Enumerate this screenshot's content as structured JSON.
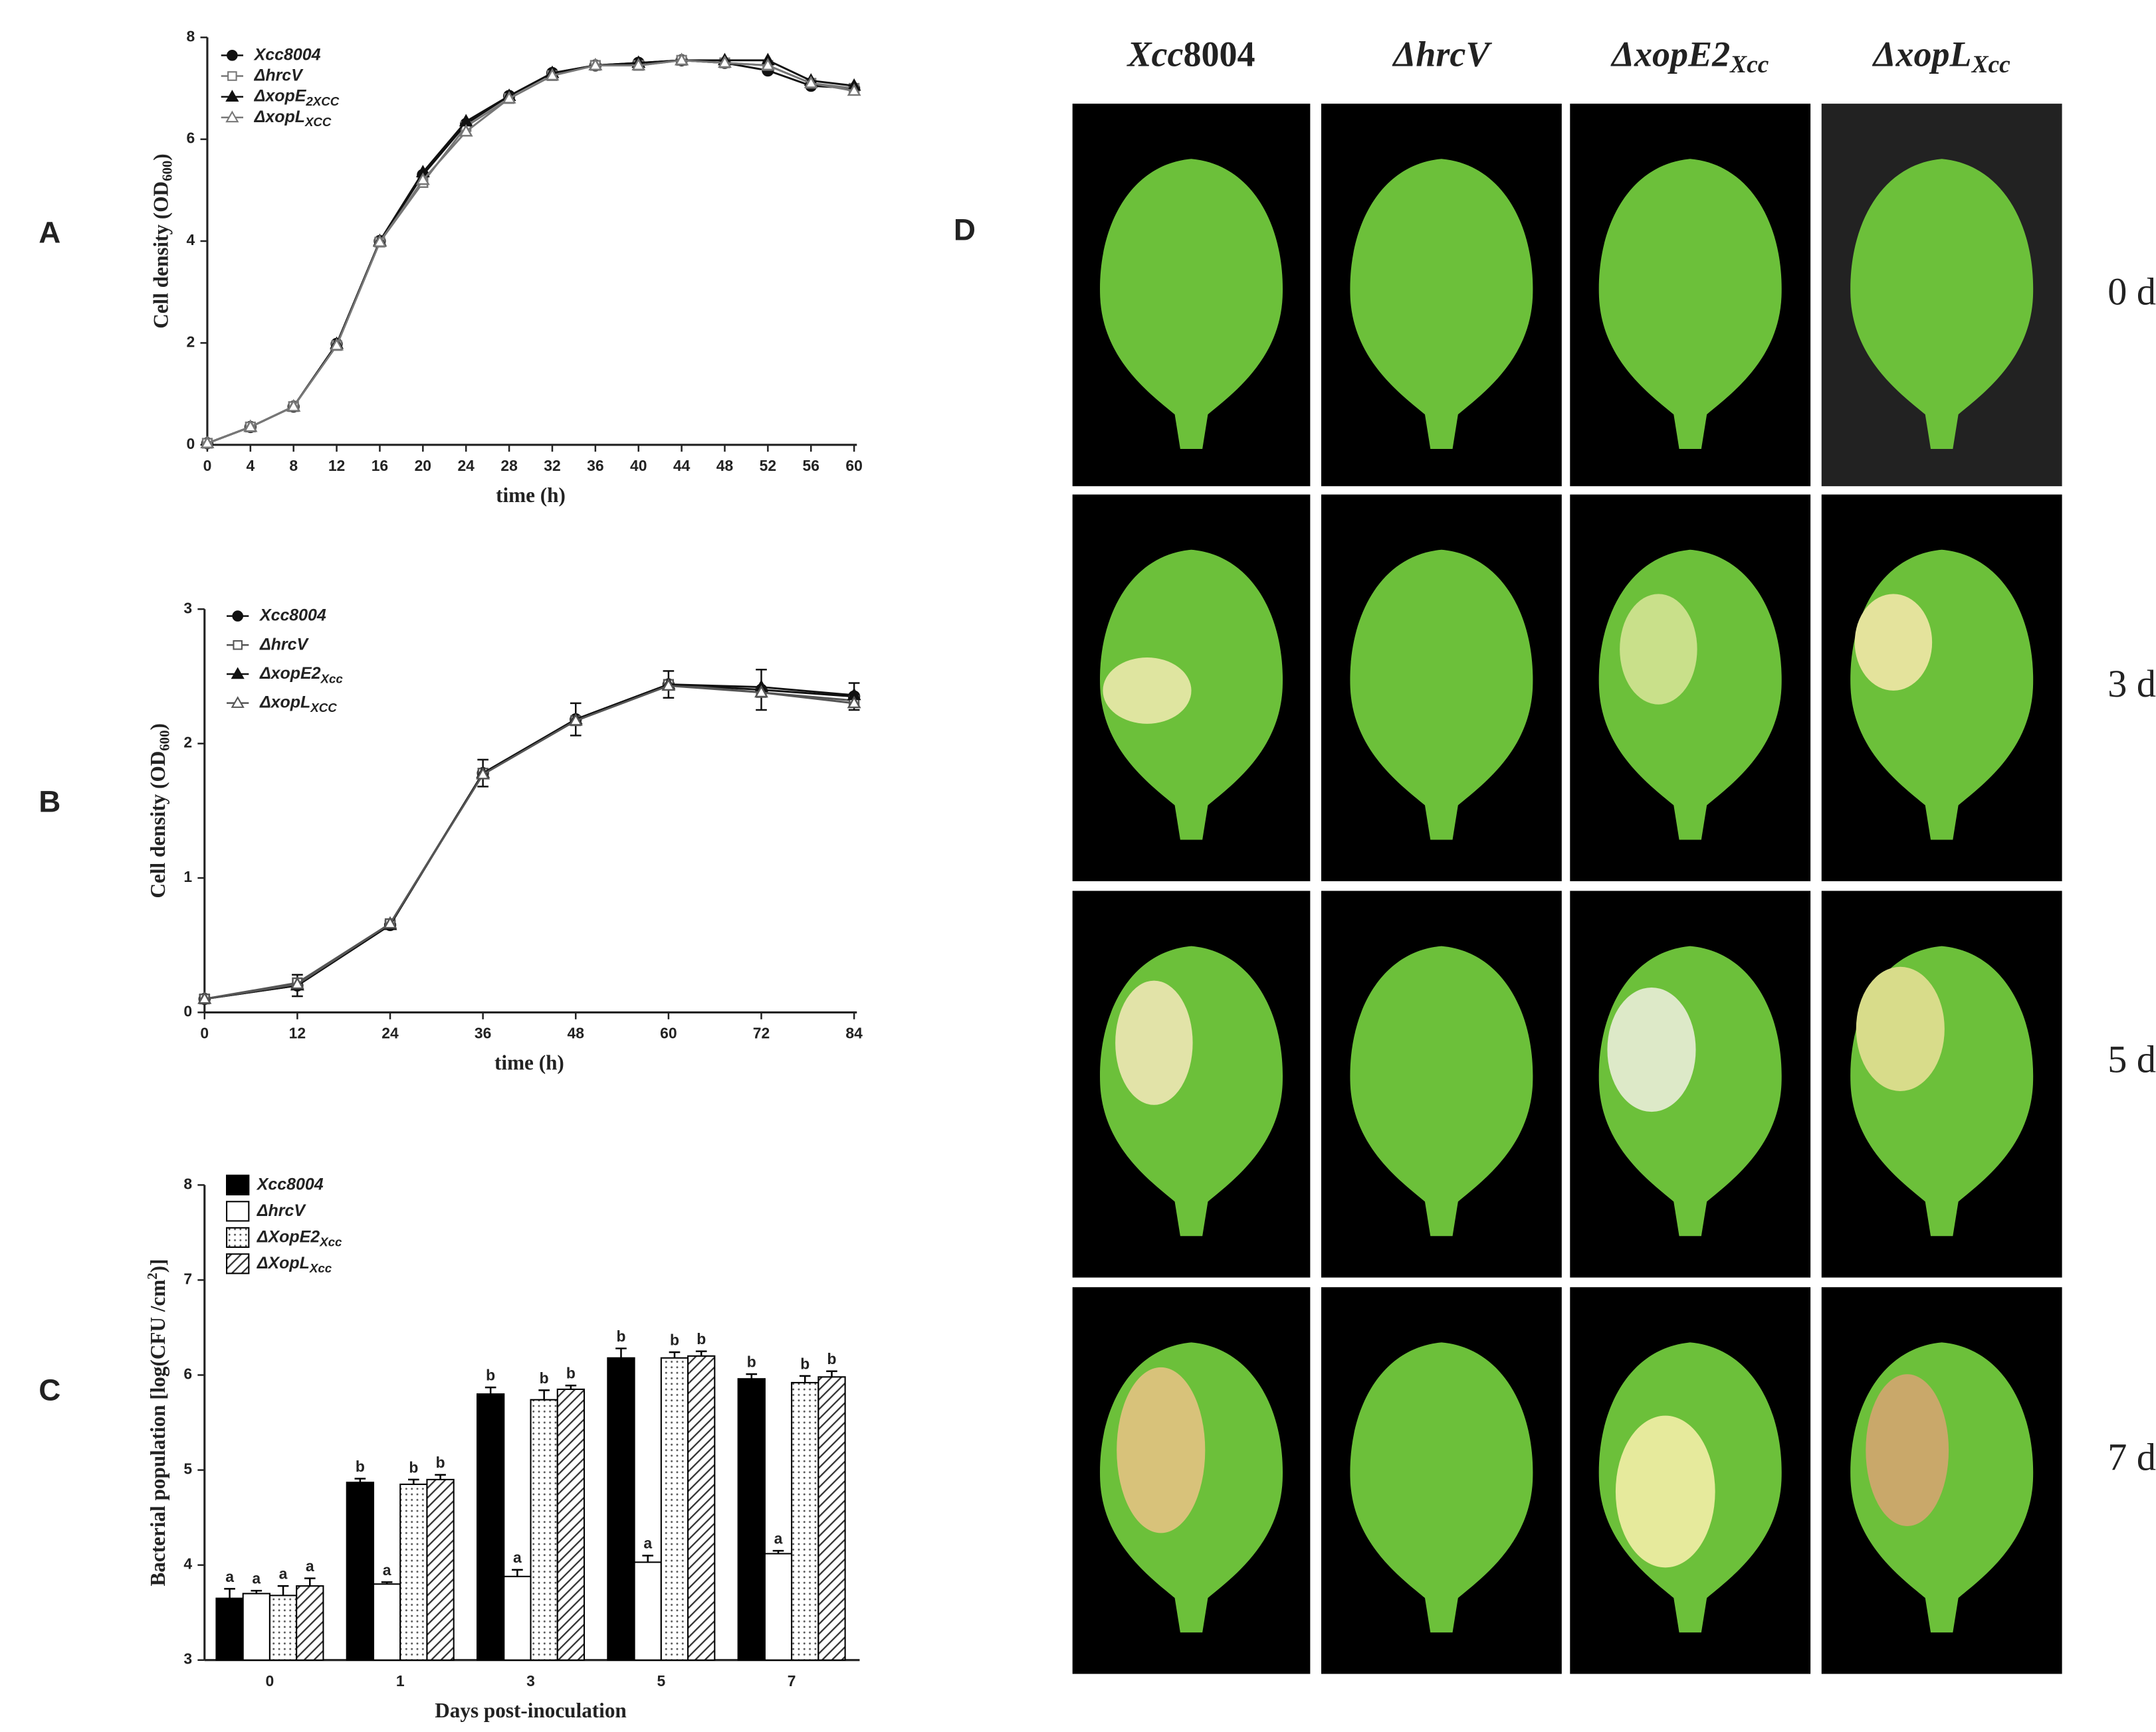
{
  "panel_labels": [
    "A",
    "B",
    "C",
    "D"
  ],
  "chart_data": [
    {
      "type": "line",
      "x_label": "time (h)",
      "y_label": [
        "Cell density (OD",
        "600",
        ")"
      ],
      "x": [
        0,
        4,
        8,
        12,
        16,
        20,
        24,
        28,
        32,
        36,
        40,
        44,
        48,
        52,
        56,
        60
      ],
      "xlim": [
        0,
        60
      ],
      "xticks": [
        0,
        4,
        8,
        12,
        16,
        20,
        24,
        28,
        32,
        36,
        40,
        44,
        48,
        52,
        56,
        60
      ],
      "ylim": [
        0,
        8
      ],
      "yticks": [
        0,
        2,
        4,
        6,
        8
      ],
      "series": [
        {
          "name": "Xcc8004",
          "color": "#111111",
          "marker": "circle",
          "filled": true,
          "values": [
            0.03,
            0.35,
            0.75,
            1.98,
            4.0,
            5.3,
            6.3,
            6.85,
            7.3,
            7.45,
            7.5,
            7.55,
            7.5,
            7.35,
            7.05,
            7.0
          ]
        },
        {
          "name": "ΔhrcV",
          "color": "#777777",
          "marker": "square",
          "filled": false,
          "values": [
            0.03,
            0.35,
            0.75,
            1.95,
            3.98,
            5.15,
            6.25,
            6.8,
            7.25,
            7.45,
            7.45,
            7.55,
            7.5,
            7.45,
            7.1,
            7.0
          ]
        },
        {
          "name": "ΔxopE",
          "name_sub": "2XCC",
          "color": "#111111",
          "marker": "triangle",
          "filled": true,
          "values": [
            0.03,
            0.35,
            0.75,
            1.98,
            4.0,
            5.35,
            6.35,
            6.85,
            7.3,
            7.45,
            7.5,
            7.55,
            7.55,
            7.55,
            7.15,
            7.05
          ]
        },
        {
          "name": "ΔxopL",
          "name_sub": "XCC",
          "color": "#777777",
          "marker": "triangle",
          "filled": false,
          "values": [
            0.03,
            0.35,
            0.75,
            1.95,
            3.98,
            5.2,
            6.15,
            6.8,
            7.25,
            7.45,
            7.45,
            7.55,
            7.5,
            7.45,
            7.1,
            6.95
          ]
        }
      ]
    },
    {
      "type": "line",
      "x_label": "time (h)",
      "y_label": [
        "Cell density (OD",
        "600",
        ")"
      ],
      "x": [
        0,
        12,
        24,
        36,
        48,
        60,
        72,
        84
      ],
      "xlim": [
        0,
        84
      ],
      "xticks": [
        0,
        12,
        24,
        36,
        48,
        60,
        72,
        84
      ],
      "ylim": [
        0,
        3
      ],
      "yticks": [
        0,
        1,
        2,
        3
      ],
      "series": [
        {
          "name": "Xcc8004",
          "color": "#111111",
          "marker": "circle",
          "filled": true,
          "values": [
            0.1,
            0.2,
            0.65,
            1.78,
            2.18,
            2.44,
            2.4,
            2.35
          ],
          "errors": [
            0.03,
            0.08,
            0.03,
            0.1,
            0.12,
            0.1,
            0.15,
            0.1
          ]
        },
        {
          "name": "ΔhrcV",
          "color": "#555555",
          "marker": "square",
          "filled": false,
          "values": [
            0.1,
            0.22,
            0.66,
            1.78,
            2.17,
            2.44,
            2.38,
            2.32
          ]
        },
        {
          "name": "ΔxopE2",
          "name_sub": "Xcc",
          "color": "#111111",
          "marker": "triangle",
          "filled": true,
          "values": [
            0.1,
            0.2,
            0.65,
            1.78,
            2.18,
            2.44,
            2.42,
            2.36
          ]
        },
        {
          "name": "ΔxopL",
          "name_sub": "XCC",
          "color": "#555555",
          "marker": "triangle",
          "filled": false,
          "values": [
            0.1,
            0.21,
            0.66,
            1.77,
            2.17,
            2.43,
            2.38,
            2.3
          ]
        }
      ]
    },
    {
      "type": "bar",
      "x_label": "Days post-inoculation",
      "y_label": [
        "Bacterial population [log(CFU /cm",
        "2",
        ")]"
      ],
      "categories": [
        "0",
        "1",
        "3",
        "5",
        "7"
      ],
      "ylim": [
        3,
        8
      ],
      "yticks": [
        3,
        4,
        5,
        6,
        7,
        8
      ],
      "series": [
        {
          "name": "Xcc8004",
          "color": "#000000",
          "pattern": "solid",
          "values": [
            3.65,
            4.87,
            5.8,
            6.18,
            5.96
          ],
          "errors": [
            0.1,
            0.04,
            0.07,
            0.1,
            0.05
          ],
          "letters": [
            "a",
            "b",
            "b",
            "b",
            "b"
          ]
        },
        {
          "name": "ΔhrcV",
          "color": "#ffffff",
          "pattern": "solid",
          "values": [
            3.7,
            3.8,
            3.88,
            4.03,
            4.12
          ],
          "errors": [
            0.03,
            0.02,
            0.07,
            0.07,
            0.03
          ],
          "letters": [
            "a",
            "a",
            "a",
            "a",
            "a"
          ]
        },
        {
          "name": "ΔXopE2",
          "name_sub": "Xcc",
          "color": "#ffffff",
          "pattern": "dots",
          "values": [
            3.68,
            4.85,
            5.74,
            6.18,
            5.92
          ],
          "errors": [
            0.1,
            0.05,
            0.1,
            0.06,
            0.07
          ],
          "letters": [
            "a",
            "b",
            "b",
            "b",
            "b"
          ]
        },
        {
          "name": "ΔXopL",
          "name_sub": "Xcc",
          "color": "#ffffff",
          "pattern": "hatch",
          "values": [
            3.78,
            4.9,
            5.85,
            6.2,
            5.98
          ],
          "errors": [
            0.08,
            0.05,
            0.04,
            0.05,
            0.06
          ],
          "letters": [
            "a",
            "b",
            "b",
            "b",
            "b"
          ]
        }
      ]
    }
  ],
  "leaf_panel": {
    "columns": [
      [
        "Xcc",
        "8004"
      ],
      [
        "ΔhrcV"
      ],
      [
        "ΔxopE2",
        "Xcc"
      ],
      [
        "ΔxopL",
        "Xcc"
      ]
    ],
    "rows": [
      "0 d",
      "3 d",
      "5 d",
      "7 d"
    ]
  }
}
